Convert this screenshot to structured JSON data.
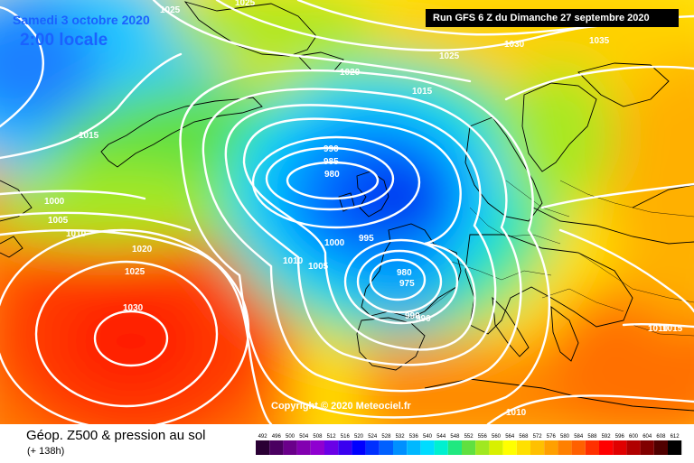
{
  "header": {
    "date": "Samedi 3 octobre 2020",
    "local_time": "2:00 locale",
    "run": "Run GFS 6 Z du Dimanche 27 septembre 2020"
  },
  "copyright": "Copyright © 2020 Meteociel.fr",
  "legend": {
    "title": "Géop. Z500 & pression au sol",
    "lead": "(+ 138h)",
    "ticks": [
      "492",
      "496",
      "500",
      "504",
      "508",
      "512",
      "516",
      "520",
      "524",
      "528",
      "532",
      "536",
      "540",
      "544",
      "548",
      "552",
      "556",
      "560",
      "564",
      "568",
      "572",
      "576",
      "580",
      "584",
      "588",
      "592",
      "596",
      "600",
      "604",
      "608",
      "612"
    ],
    "colors": [
      "#2a0034",
      "#4a0060",
      "#6a008a",
      "#8200b0",
      "#8f00d0",
      "#6a00e6",
      "#3a00f0",
      "#0000ff",
      "#0030ff",
      "#0060ff",
      "#0090ff",
      "#00b8ff",
      "#00dcff",
      "#00f0d0",
      "#20e880",
      "#60e040",
      "#a0e820",
      "#d8f000",
      "#ffff00",
      "#ffe000",
      "#ffc000",
      "#ffa000",
      "#ff8000",
      "#ff6000",
      "#ff3000",
      "#ff0000",
      "#e00000",
      "#b00000",
      "#800000",
      "#500000",
      "#000000"
    ]
  },
  "isobars": [
    "1025",
    "1025",
    "1030",
    "1035",
    "1025",
    "1020",
    "1015",
    "1015",
    "990",
    "985",
    "980",
    "1000",
    "1005",
    "1010",
    "1020",
    "1025",
    "1030",
    "1010",
    "1005",
    "1000",
    "995",
    "980",
    "975",
    "990",
    "990",
    "1010",
    "1015",
    "1010"
  ]
}
